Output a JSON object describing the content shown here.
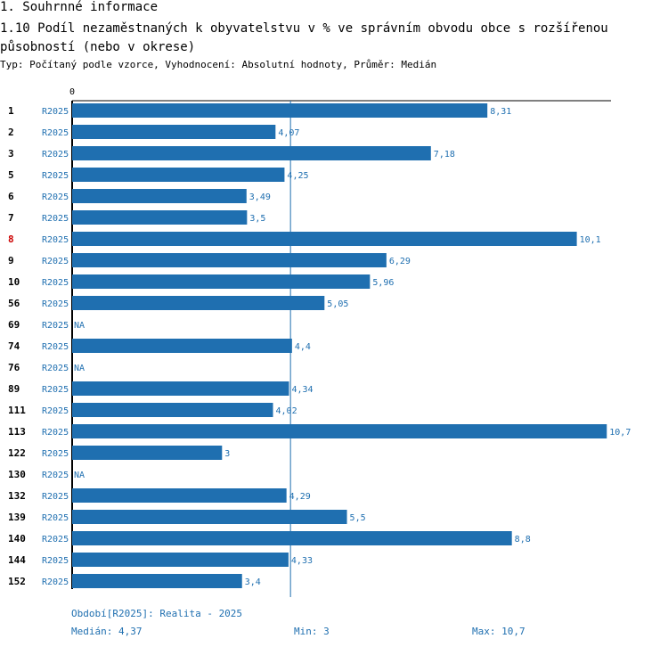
{
  "section_title": "1. Souhrnné informace",
  "chart_title": "1.10 Podíl nezaměstnaných k obyvatelstvu v % ve správním obvodu obce s rozšířenou působností (nebo v okrese)",
  "subtitle": "Typ: Počítaný podle vzorce, Vyhodnocení: Absolutní hodnoty, Průměr: Medián",
  "colors": {
    "bar": "#1f6fb0",
    "highlight": "#cc0000",
    "text": "#000000"
  },
  "chart_data": {
    "type": "bar",
    "orientation": "horizontal",
    "axis_zero_label": "0",
    "period_label": "R2025",
    "highlight_category": "8",
    "categories": [
      "1",
      "2",
      "3",
      "5",
      "6",
      "7",
      "8",
      "9",
      "10",
      "56",
      "69",
      "74",
      "76",
      "89",
      "111",
      "113",
      "122",
      "130",
      "132",
      "139",
      "140",
      "144",
      "152"
    ],
    "values": [
      8.31,
      4.07,
      7.18,
      4.25,
      3.49,
      3.5,
      10.1,
      6.29,
      5.96,
      5.05,
      null,
      4.4,
      null,
      4.34,
      4.02,
      10.7,
      3,
      null,
      4.29,
      5.5,
      8.8,
      4.33,
      3.4
    ],
    "value_labels": [
      "8,31",
      "4,07",
      "7,18",
      "4,25",
      "3,49",
      "3,5",
      "10,1",
      "6,29",
      "5,96",
      "5,05",
      "NA",
      "4,4",
      "NA",
      "4,34",
      "4,02",
      "10,7",
      "3",
      "NA",
      "4,29",
      "5,5",
      "8,8",
      "4,33",
      "3,4"
    ],
    "xlim": [
      0,
      10.7
    ],
    "median": 4.37
  },
  "footer": {
    "period": "Období[R2025]: Realita - 2025",
    "median": "Medián: 4,37",
    "min": "Min: 3",
    "max": "Max: 10,7"
  }
}
